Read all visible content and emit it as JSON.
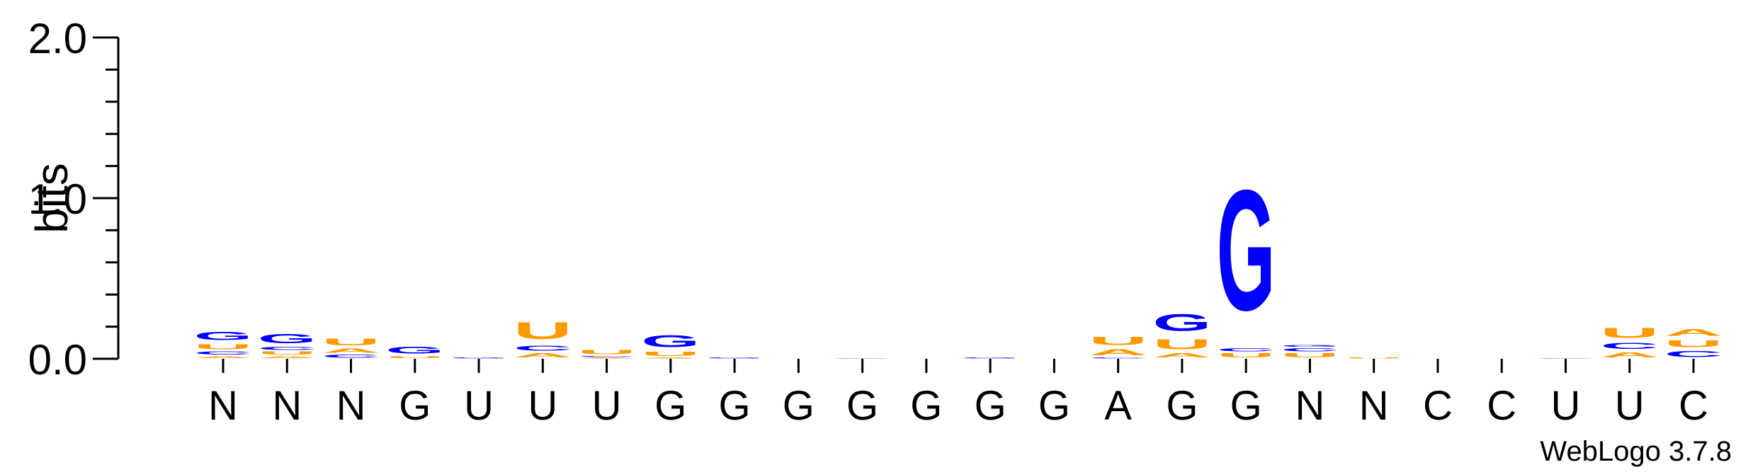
{
  "chart_data": {
    "type": "sequence-logo",
    "ylabel": "bits",
    "ylim": [
      0,
      2.0
    ],
    "yticks": [
      {
        "value": 0.0,
        "label": "0.0"
      },
      {
        "value": 1.0,
        "label": "1.0"
      },
      {
        "value": 2.0,
        "label": "2.0"
      }
    ],
    "consensus": [
      "N",
      "N",
      "N",
      "G",
      "U",
      "U",
      "U",
      "G",
      "G",
      "G",
      "G",
      "G",
      "G",
      "G",
      "A",
      "G",
      "G",
      "N",
      "N",
      "C",
      "C",
      "U",
      "U",
      "C"
    ],
    "colors": {
      "G": "#0000ff",
      "C": "#0000ff",
      "A": "#ff9900",
      "U": "#ff9900"
    },
    "columns": [
      [
        {
          "l": "A",
          "h": 0.02
        },
        {
          "l": "C",
          "h": 0.03
        },
        {
          "l": "U",
          "h": 0.05
        },
        {
          "l": "G",
          "h": 0.08
        }
      ],
      [
        {
          "l": "A",
          "h": 0.02
        },
        {
          "l": "U",
          "h": 0.03
        },
        {
          "l": "C",
          "h": 0.03
        },
        {
          "l": "G",
          "h": 0.09
        }
      ],
      [
        {
          "l": "C",
          "h": 0.03
        },
        {
          "l": "A",
          "h": 0.04
        },
        {
          "l": "U",
          "h": 0.07
        }
      ],
      [
        {
          "l": "U",
          "h": 0.02
        },
        {
          "l": "G",
          "h": 0.07
        }
      ],
      [
        {
          "l": "G",
          "h": 0.01
        }
      ],
      [
        {
          "l": "A",
          "h": 0.04
        },
        {
          "l": "C",
          "h": 0.05
        },
        {
          "l": "U",
          "h": 0.17
        }
      ],
      [
        {
          "l": "A",
          "h": 0.01
        },
        {
          "l": "C",
          "h": 0.01
        },
        {
          "l": "U",
          "h": 0.04
        }
      ],
      [
        {
          "l": "A",
          "h": 0.01
        },
        {
          "l": "U",
          "h": 0.04
        },
        {
          "l": "G",
          "h": 0.12
        }
      ],
      [
        {
          "l": "G",
          "h": 0.01
        }
      ],
      [],
      [
        {
          "l": "G",
          "h": 0.005
        }
      ],
      [],
      [
        {
          "l": "G",
          "h": 0.01
        }
      ],
      [],
      [
        {
          "l": "C",
          "h": 0.01
        },
        {
          "l": "A",
          "h": 0.06
        },
        {
          "l": "U",
          "h": 0.08
        }
      ],
      [
        {
          "l": "A",
          "h": 0.04
        },
        {
          "l": "U",
          "h": 0.1
        },
        {
          "l": "G",
          "h": 0.17
        }
      ],
      [
        {
          "l": "U",
          "h": 0.04
        },
        {
          "l": "C",
          "h": 0.03
        },
        {
          "l": "G",
          "h": 1.2
        }
      ],
      [
        {
          "l": "U",
          "h": 0.04
        },
        {
          "l": "C",
          "h": 0.03
        },
        {
          "l": "G",
          "h": 0.02
        }
      ],
      [
        {
          "l": "U",
          "h": 0.01
        }
      ],
      [],
      [],
      [
        {
          "l": "C",
          "h": 0.005
        }
      ],
      [
        {
          "l": "A",
          "h": 0.05
        },
        {
          "l": "C",
          "h": 0.06
        },
        {
          "l": "U",
          "h": 0.1
        }
      ],
      [
        {
          "l": "C",
          "h": 0.06
        },
        {
          "l": "U",
          "h": 0.07
        },
        {
          "l": "A",
          "h": 0.07
        }
      ]
    ]
  },
  "footer": {
    "version_label": "WebLogo 3.7.8"
  }
}
